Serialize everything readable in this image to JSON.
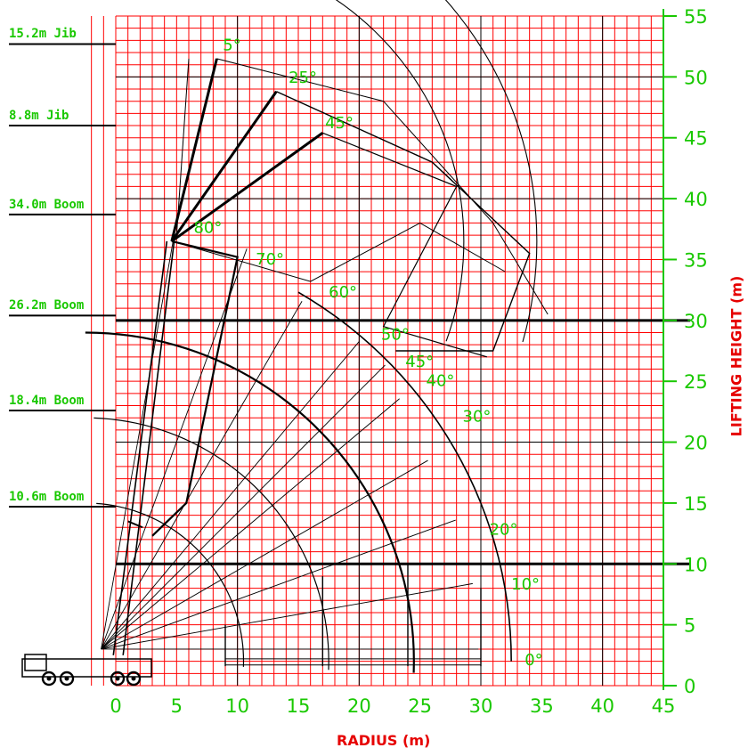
{
  "chart_data": {
    "type": "diagram",
    "xlabel": "RADIUS (m)",
    "ylabel": "LIFTING HEIGHT (m)",
    "xlim": [
      0,
      45
    ],
    "ylim": [
      0,
      55
    ],
    "x_ticks": [
      "0",
      "5",
      "10",
      "15",
      "20",
      "25",
      "30",
      "35",
      "40",
      "45"
    ],
    "y_ticks": [
      "0",
      "5",
      "10",
      "15",
      "20",
      "25",
      "30",
      "35",
      "40",
      "45",
      "50",
      "55"
    ],
    "boom_labels": [
      {
        "label": "15.2m Jib",
        "height": 52.7
      },
      {
        "label": "8.8m Jib",
        "height": 46.0
      },
      {
        "label": "34.0m Boom",
        "height": 38.7
      },
      {
        "label": "26.2m Boom",
        "height": 30.4
      },
      {
        "label": "18.4m Boom",
        "height": 22.6
      },
      {
        "label": "10.6m Boom",
        "height": 14.7
      }
    ],
    "angle_labels": [
      {
        "text": "5°",
        "x": 8.8,
        "y": 52.2
      },
      {
        "text": "25°",
        "x": 14.2,
        "y": 49.5
      },
      {
        "text": "45°",
        "x": 17.2,
        "y": 45.8
      },
      {
        "text": "80°",
        "x": 6.4,
        "y": 37.2
      },
      {
        "text": "70°",
        "x": 11.5,
        "y": 34.6
      },
      {
        "text": "60°",
        "x": 17.5,
        "y": 31.9
      },
      {
        "text": "50°",
        "x": 21.8,
        "y": 28.4
      },
      {
        "text": "45°",
        "x": 23.8,
        "y": 26.2
      },
      {
        "text": "40°",
        "x": 25.5,
        "y": 24.6
      },
      {
        "text": "30°",
        "x": 28.5,
        "y": 21.7
      },
      {
        "text": "20°",
        "x": 30.7,
        "y": 12.4
      },
      {
        "text": "10°",
        "x": 32.5,
        "y": 7.9
      },
      {
        "text": "0°",
        "x": 33.6,
        "y": 1.7
      }
    ]
  }
}
